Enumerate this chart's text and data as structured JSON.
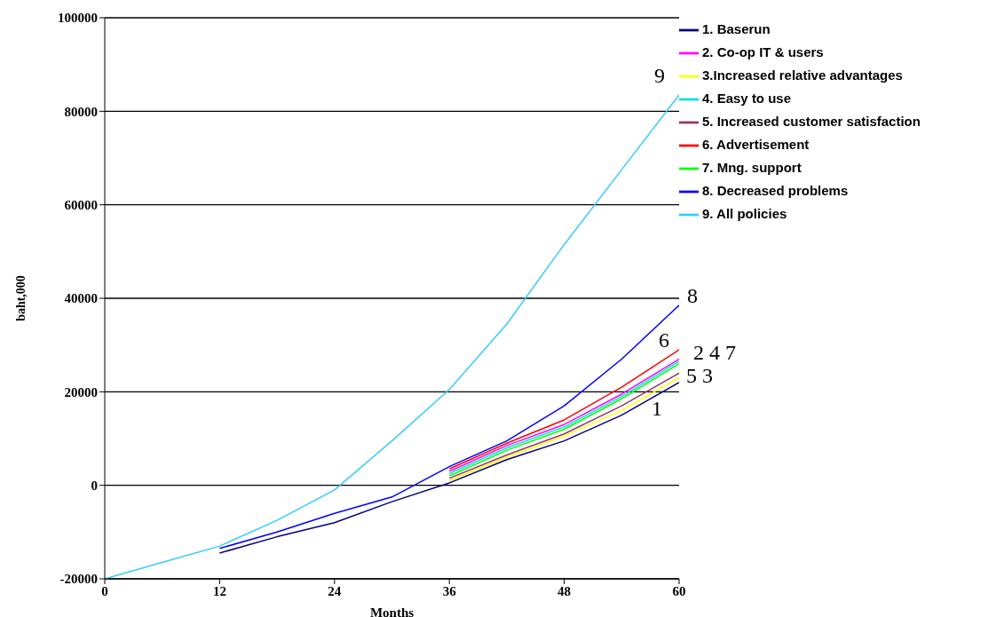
{
  "chart_data": {
    "type": "line",
    "xlabel": "Months",
    "ylabel": "baht,000",
    "x": [
      0,
      6,
      12,
      18,
      24,
      30,
      36,
      42,
      48,
      54,
      60
    ],
    "xlim": [
      0,
      60
    ],
    "xticks": [
      0,
      12,
      24,
      36,
      48,
      60
    ],
    "ylim": [
      -20000,
      100000
    ],
    "yticks": [
      -20000,
      0,
      20000,
      40000,
      60000,
      80000,
      100000
    ],
    "grid": "y",
    "legend": "right",
    "series": [
      {
        "name": "1. Baserun",
        "color": "#000080",
        "values": [
          null,
          null,
          -14500,
          -11000,
          -8000,
          -3500,
          500,
          5500,
          9500,
          15000,
          22000
        ]
      },
      {
        "name": "2. Co-op IT & users",
        "color": "#ff00ff",
        "values": [
          null,
          null,
          null,
          null,
          null,
          null,
          3000,
          8500,
          13000,
          19500,
          27000
        ]
      },
      {
        "name": "3.Increased relative advantages",
        "color": "#ffff00",
        "values": [
          null,
          null,
          null,
          null,
          null,
          null,
          1000,
          6000,
          10500,
          16000,
          23000
        ]
      },
      {
        "name": "4. Easy to use",
        "color": "#00e0e0",
        "values": [
          null,
          null,
          null,
          null,
          null,
          null,
          2500,
          8000,
          12500,
          19000,
          26500
        ]
      },
      {
        "name": "5. Increased customer satisfaction",
        "color": "#993366",
        "values": [
          null,
          null,
          null,
          null,
          null,
          null,
          1500,
          6500,
          11000,
          17000,
          24000
        ]
      },
      {
        "name": "6. Advertisement",
        "color": "#ff0000",
        "values": [
          null,
          null,
          null,
          null,
          null,
          null,
          3500,
          9000,
          14000,
          21000,
          29000
        ]
      },
      {
        "name": "7. Mng. support",
        "color": "#00ff00",
        "values": [
          null,
          null,
          null,
          null,
          null,
          null,
          2000,
          7500,
          12000,
          18500,
          26000
        ]
      },
      {
        "name": "8. Decreased problems",
        "color": "#0000ff",
        "values": [
          null,
          null,
          -13500,
          -10000,
          -6000,
          -2500,
          4000,
          9500,
          17000,
          27000,
          38500
        ]
      },
      {
        "name": "9. All policies",
        "color": "#33ccff",
        "values": [
          -20000,
          -16500,
          -13000,
          -7500,
          -1000,
          9500,
          20500,
          34500,
          51500,
          67500,
          83500
        ]
      }
    ],
    "annotations": [
      "9",
      "8",
      "6",
      "2 4 7",
      "5 3",
      "1"
    ]
  }
}
